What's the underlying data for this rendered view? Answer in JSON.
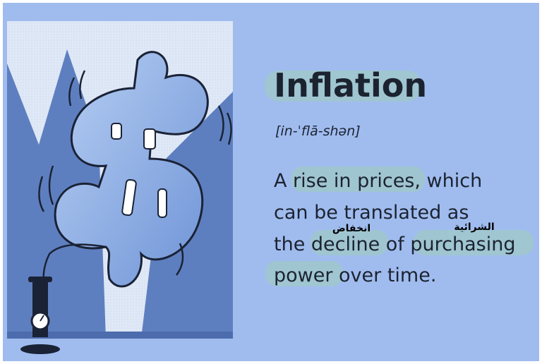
{
  "card": {
    "term": "Inflation",
    "pronunciation": "[in-ˈflā-shən]",
    "definition_lines": [
      "A rise in prices, which",
      "can be translated as",
      "the decline of purchasing",
      "power over time."
    ],
    "annotations": [
      "انخفاض",
      "الشرائية"
    ]
  }
}
